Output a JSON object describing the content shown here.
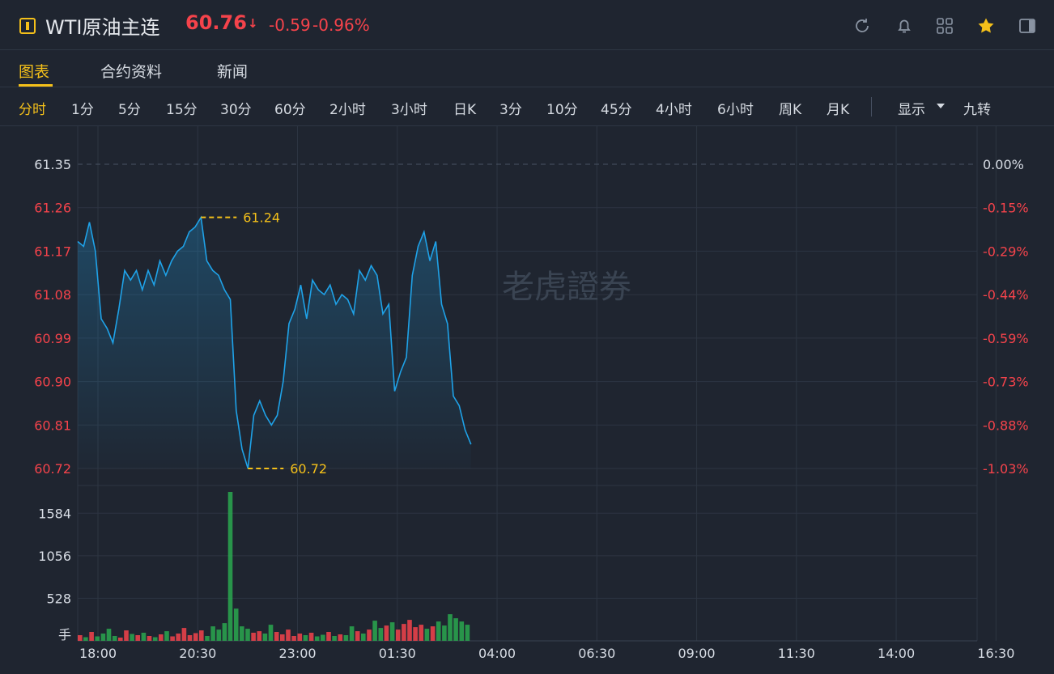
{
  "header": {
    "title": "WTI原油主连",
    "price": "60.76",
    "arrow": "↓",
    "change": "-0.59",
    "change_pct": "-0.96%",
    "icons": [
      "refresh-icon",
      "bell-icon",
      "grid-icon",
      "star-icon",
      "sidebar-toggle-icon"
    ]
  },
  "tabs": [
    {
      "label": "图表",
      "active": true
    },
    {
      "label": "合约资料",
      "active": false
    },
    {
      "label": "新闻",
      "active": false
    }
  ],
  "periods": [
    "分时",
    "1分",
    "5分",
    "15分",
    "30分",
    "60分",
    "2小时",
    "3小时",
    "日K",
    "3分",
    "10分",
    "45分",
    "4小时",
    "6小时",
    "周K",
    "月K"
  ],
  "period_active": "分时",
  "display_label": "显示",
  "nine_turn_label": "九转",
  "watermark": "老虎證券",
  "colors": {
    "up": "#f5434b",
    "down": "#2aa84f",
    "line": "#1fa2e8",
    "accent": "#f4c01a"
  },
  "chart_data": {
    "type": "line",
    "price_ticks_left": [
      "61.35",
      "61.26",
      "61.17",
      "61.08",
      "60.99",
      "60.90",
      "60.81",
      "60.72"
    ],
    "pct_ticks_right": [
      "0.00%",
      "-0.15%",
      "-0.29%",
      "-0.44%",
      "-0.59%",
      "-0.73%",
      "-0.88%",
      "-1.03%"
    ],
    "ylim": [
      60.72,
      61.35
    ],
    "high_label": "61.24",
    "low_label": "60.72",
    "volume_ticks": [
      "1584",
      "1056",
      "528"
    ],
    "volume_unit": "手",
    "volume_max": 1848,
    "x_ticks": [
      "18:00",
      "20:30",
      "23:00",
      "01:30",
      "04:00",
      "06:30",
      "09:00",
      "11:30",
      "14:00",
      "16:30"
    ],
    "series_price": [
      61.19,
      61.18,
      61.23,
      61.17,
      61.03,
      61.01,
      60.98,
      61.05,
      61.13,
      61.11,
      61.13,
      61.09,
      61.13,
      61.1,
      61.15,
      61.12,
      61.15,
      61.17,
      61.18,
      61.21,
      61.22,
      61.24,
      61.15,
      61.13,
      61.12,
      61.09,
      61.07,
      60.84,
      60.76,
      60.72,
      60.83,
      60.86,
      60.83,
      60.81,
      60.83,
      60.9,
      61.02,
      61.05,
      61.1,
      61.03,
      61.11,
      61.09,
      61.08,
      61.1,
      61.06,
      61.08,
      61.07,
      61.04,
      61.13,
      61.11,
      61.14,
      61.12,
      61.04,
      61.06,
      60.88,
      60.92,
      60.95,
      61.12,
      61.18,
      61.21,
      61.15,
      61.19,
      61.06,
      61.02,
      60.87,
      60.85,
      60.8,
      60.77
    ],
    "series_volume": [
      70,
      45,
      110,
      55,
      90,
      150,
      60,
      40,
      130,
      85,
      70,
      100,
      60,
      45,
      80,
      120,
      55,
      90,
      160,
      70,
      95,
      130,
      60,
      180,
      140,
      220,
      1848,
      400,
      180,
      150,
      100,
      120,
      90,
      200,
      110,
      80,
      140,
      60,
      90,
      70,
      100,
      55,
      75,
      110,
      60,
      80,
      70,
      180,
      120,
      90,
      140,
      250,
      160,
      190,
      230,
      140,
      210,
      260,
      170,
      200,
      150,
      180,
      240,
      190,
      330,
      280,
      240,
      200
    ]
  }
}
